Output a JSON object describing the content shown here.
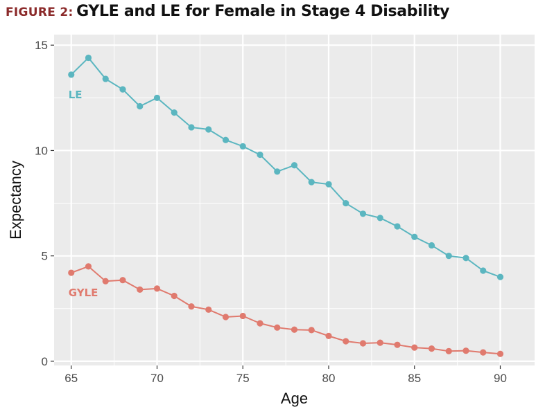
{
  "figure_label": "FIGURE 2:",
  "figure_title": "GYLE and LE for Female in Stage 4 Disability",
  "colors": {
    "figure_label": "#8b2a2a",
    "le": "#5bb6c0",
    "gyle": "#e07a6e",
    "panel": "#ebebeb",
    "grid": "#ffffff"
  },
  "chart_data": {
    "type": "line",
    "title": "GYLE and LE for Female in Stage 4 Disability",
    "xlabel": "Age",
    "ylabel": "Expectancy",
    "xlim": [
      64,
      92
    ],
    "ylim": [
      -0.2,
      15.5
    ],
    "x_ticks": [
      65,
      70,
      75,
      80,
      85,
      90
    ],
    "y_ticks": [
      0,
      5,
      10,
      15
    ],
    "grid": true,
    "legend": "direct labels",
    "x": [
      65,
      66,
      67,
      68,
      69,
      70,
      71,
      72,
      73,
      74,
      75,
      76,
      77,
      78,
      79,
      80,
      81,
      82,
      83,
      84,
      85,
      86,
      87,
      88,
      89,
      90
    ],
    "series": [
      {
        "name": "LE",
        "color": "#5bb6c0",
        "values": [
          13.6,
          14.4,
          13.4,
          12.9,
          12.1,
          12.5,
          11.8,
          11.1,
          11.0,
          10.5,
          10.2,
          9.8,
          9.0,
          9.3,
          8.5,
          8.4,
          7.5,
          7.0,
          6.8,
          6.4,
          5.9,
          5.5,
          5.0,
          4.9,
          4.3,
          4.0
        ]
      },
      {
        "name": "GYLE",
        "color": "#e07a6e",
        "values": [
          4.2,
          4.5,
          3.8,
          3.85,
          3.4,
          3.45,
          3.1,
          2.6,
          2.45,
          2.1,
          2.15,
          1.8,
          1.6,
          1.5,
          1.48,
          1.2,
          0.95,
          0.85,
          0.88,
          0.78,
          0.65,
          0.6,
          0.48,
          0.5,
          0.42,
          0.35
        ]
      }
    ]
  }
}
